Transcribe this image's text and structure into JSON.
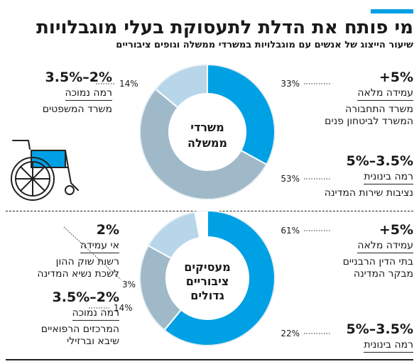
{
  "header": {
    "title": "מי פותח את הדלת לתעסוקת בעלי מוגבלויות",
    "subtitle": "שיעור הייצוג של אנשים עם מוגבלויות במשרדי ממשלה וגופים ציבוריים"
  },
  "colors": {
    "accent": "#00a0e4",
    "light": "#b8d6ea",
    "mid": "#9fb9c9",
    "white": "#ffffff"
  },
  "icon": "wheelchair-icon",
  "chart_data": [
    {
      "type": "pie",
      "center_label": [
        "משרדי",
        "ממשלה"
      ],
      "slices": [
        {
          "value": 33,
          "label": "33%",
          "color": "#00a0e4"
        },
        {
          "value": 53,
          "label": "53%",
          "color": "#9fb9c9"
        },
        {
          "value": 14,
          "label": "14%",
          "color": "#b8d6ea"
        }
      ],
      "categories": [
        {
          "range": "+5%",
          "level": "עמידה מלאה",
          "orgs": [
            "משרד התחבורה",
            "המשרד לביטחון פנים"
          ]
        },
        {
          "range": "5%–3.5%",
          "level": "רמה בינונית",
          "orgs": [
            "נציבות שירות המדינה"
          ]
        },
        {
          "range": "3.5%–2%",
          "level": "רמה נמוכה",
          "orgs": [
            "משרד המשפטים"
          ]
        }
      ]
    },
    {
      "type": "pie",
      "center_label": [
        "מעסיקים",
        "ציבוריים",
        "גדולים"
      ],
      "slices": [
        {
          "value": 61,
          "label": "61%",
          "color": "#00a0e4"
        },
        {
          "value": 22,
          "label": "22%",
          "color": "#9fb9c9"
        },
        {
          "value": 14,
          "label": "14%",
          "color": "#b8d6ea"
        },
        {
          "value": 3,
          "label": "3%",
          "color": "#ffffff"
        }
      ],
      "categories": [
        {
          "range": "+5%",
          "level": "עמידה מלאה",
          "orgs": [
            "בתי הדין הרבניים",
            "מבקר המדינה"
          ]
        },
        {
          "range": "5%–3.5%",
          "level": "רמה בינונית",
          "orgs": []
        },
        {
          "range": "3.5%–2%",
          "level": "רמה נמוכה",
          "orgs": [
            "המרכזים הרפואיים",
            "שיבא וברזילי"
          ]
        },
        {
          "range": "2%",
          "level": "אי עמידה",
          "orgs": [
            "רשות שוק ההון",
            "לשכת נשיא המדינה"
          ]
        }
      ]
    }
  ]
}
